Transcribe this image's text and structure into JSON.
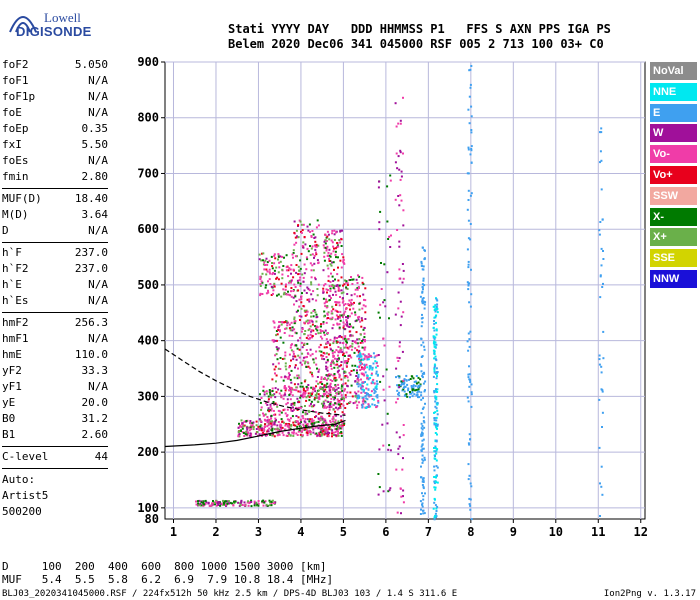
{
  "logo": {
    "line1": "Lowell",
    "line2": "DIGISONDE"
  },
  "header": {
    "line1": "Stati YYYY DAY   DDD HHMMSS P1   FFS S AXN PPS IGA PS",
    "line2": "Belem 2020 Dec06 341 045000 RSF 005 2 713 100 03+ C0"
  },
  "params": {
    "group1": [
      {
        "label": "foF2",
        "value": "5.050"
      },
      {
        "label": "foF1",
        "value": "N/A"
      },
      {
        "label": "foF1p",
        "value": "N/A"
      },
      {
        "label": "foE",
        "value": "N/A"
      },
      {
        "label": "foEp",
        "value": "0.35"
      },
      {
        "label": "fxI",
        "value": "5.50"
      },
      {
        "label": "foEs",
        "value": "N/A"
      },
      {
        "label": "fmin",
        "value": "2.80"
      }
    ],
    "group2": [
      {
        "label": "MUF(D)",
        "value": "18.40"
      },
      {
        "label": "M(D)",
        "value": "3.64"
      },
      {
        "label": "D",
        "value": "N/A"
      }
    ],
    "group3": [
      {
        "label": "h`F",
        "value": "237.0"
      },
      {
        "label": "h`F2",
        "value": "237.0"
      },
      {
        "label": "h`E",
        "value": "N/A"
      },
      {
        "label": "h`Es",
        "value": "N/A"
      }
    ],
    "group4": [
      {
        "label": "hmF2",
        "value": "256.3"
      },
      {
        "label": "hmF1",
        "value": "N/A"
      },
      {
        "label": "hmE",
        "value": "110.0"
      },
      {
        "label": "yF2",
        "value": "33.3"
      },
      {
        "label": "yF1",
        "value": "N/A"
      },
      {
        "label": "yE",
        "value": "20.0"
      },
      {
        "label": "B0",
        "value": "31.2"
      },
      {
        "label": "B1",
        "value": "2.60"
      }
    ],
    "clevel": {
      "label": "C-level",
      "value": "44"
    },
    "auto": [
      "Auto:",
      "Artist5",
      "500200"
    ]
  },
  "legend": [
    {
      "label": "NoVal",
      "color": "#8c8c8c"
    },
    {
      "label": "NNE",
      "color": "#00e8f0"
    },
    {
      "label": "E",
      "color": "#3fa0f0"
    },
    {
      "label": "W",
      "color": "#a0109a"
    },
    {
      "label": "Vo-",
      "color": "#f03ca8"
    },
    {
      "label": "Vo+",
      "color": "#e8001c"
    },
    {
      "label": "SSW",
      "color": "#f2a8a0"
    },
    {
      "label": "X-",
      "color": "#007a00"
    },
    {
      "label": "X+",
      "color": "#6ab04a"
    },
    {
      "label": "SSE",
      "color": "#d2d400"
    },
    {
      "label": "NNW",
      "color": "#1a10d8"
    }
  ],
  "muf_table": {
    "d_line": "D     100  200  400  600  800 1000 1500 3000 [km]",
    "muf_line": "MUF   5.4  5.5  5.8  6.2  6.9  7.9 10.8 18.4 [MHz]"
  },
  "footnote": {
    "left": "BLJ03_2020341045000.RSF / 224fx512h 50 kHz 2.5 km / DPS-4D BLJ03 103 / 1.4 S 311.6 E",
    "right": "Ion2Png v. 1.3.17"
  },
  "chart_data": {
    "type": "scatter",
    "xlim": [
      0.8,
      12.1
    ],
    "ylim": [
      80,
      900
    ],
    "x_ticks": [
      "1",
      "2",
      "3",
      "4",
      "5",
      "6",
      "7",
      "8",
      "9",
      "10",
      "11",
      "12"
    ],
    "y_ticks": [
      "100",
      "200",
      "300",
      "400",
      "500",
      "600",
      "700",
      "800",
      "900"
    ],
    "y_bottom_label": "80",
    "grid": true,
    "traces": [
      {
        "name": "F2 O-trace profile",
        "x": [
          0.8,
          1.5,
          2.0,
          2.5,
          3.0,
          3.5,
          4.0,
          4.4,
          4.8,
          5.05
        ],
        "y": [
          210,
          213,
          216,
          221,
          229,
          237,
          243,
          247,
          250,
          257
        ]
      },
      {
        "name": "F2 extrapolated (dashed)",
        "x": [
          0.8,
          1.2,
          1.6,
          2.0,
          2.4,
          2.8,
          3.2,
          3.6,
          4.0,
          4.5,
          5.05
        ],
        "y": [
          385,
          365,
          345,
          328,
          313,
          300,
          290,
          282,
          276,
          270,
          266
        ]
      }
    ]
  }
}
